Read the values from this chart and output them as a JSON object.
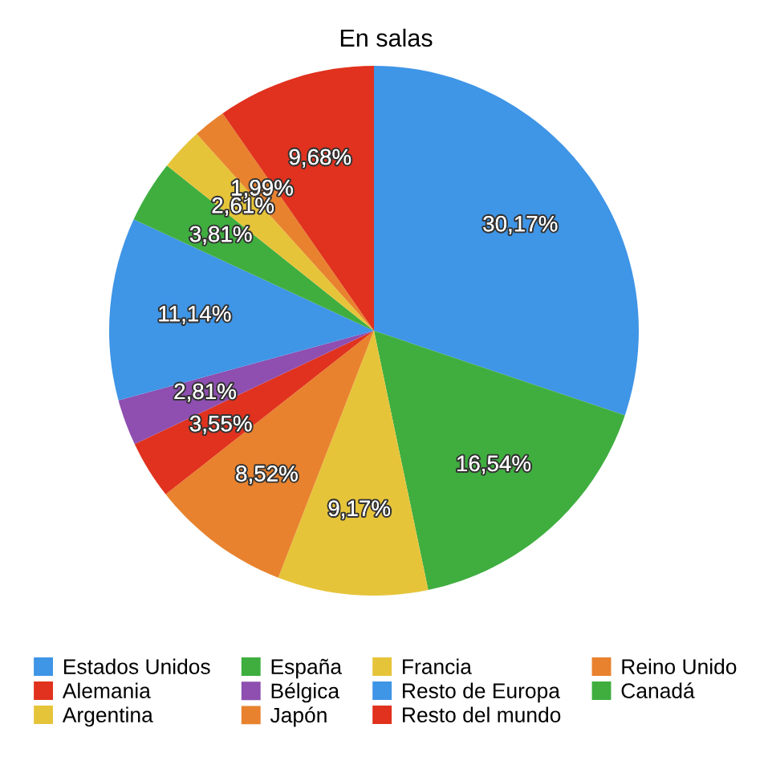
{
  "chart_data": {
    "type": "pie",
    "title": "En salas",
    "categories": [
      "Estados Unidos",
      "España",
      "Francia",
      "Reino Unido",
      "Alemania",
      "Bélgica",
      "Resto de Europa",
      "Canadá",
      "Argentina",
      "Japón",
      "Resto del mundo"
    ],
    "values": [
      30.17,
      16.54,
      9.17,
      8.52,
      3.55,
      2.81,
      11.14,
      3.81,
      2.61,
      1.99,
      9.68
    ],
    "value_labels": [
      "30,17%",
      "16,54%",
      "9,17%",
      "8,52%",
      "3,55%",
      "2,81%",
      "11,14%",
      "3,81%",
      "2,61%",
      "1,99%",
      "9,68%"
    ],
    "colors": [
      "#3f95e6",
      "#3fae3f",
      "#e6c43a",
      "#e8822e",
      "#e0321e",
      "#8e4fb0",
      "#3f95e6",
      "#3fae3f",
      "#e6c43a",
      "#e8822e",
      "#e0321e"
    ],
    "legend": "bottom"
  }
}
